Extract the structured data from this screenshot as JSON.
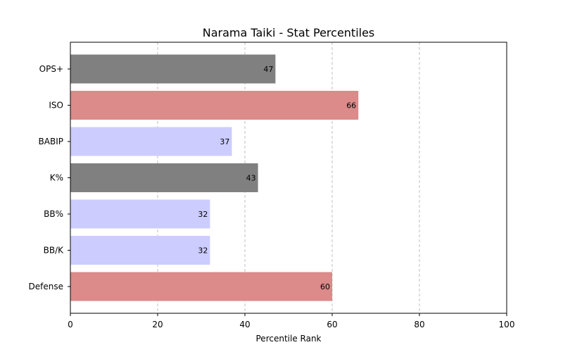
{
  "chart_data": {
    "type": "bar",
    "orientation": "horizontal",
    "title": "Narama Taiki - Stat Percentiles",
    "xlabel": "Percentile Rank",
    "ylabel": "",
    "xlim": [
      0,
      100
    ],
    "xticks": [
      0,
      20,
      40,
      60,
      80,
      100
    ],
    "grid": "x-dashed",
    "categories": [
      "OPS+",
      "ISO",
      "BABIP",
      "K%",
      "BB%",
      "BB/K",
      "Defense"
    ],
    "values": [
      47,
      66,
      37,
      43,
      32,
      32,
      60
    ],
    "colors": [
      "#808080",
      "#dc8a8a",
      "#ccccff",
      "#808080",
      "#ccccff",
      "#ccccff",
      "#dc8a8a"
    ]
  }
}
